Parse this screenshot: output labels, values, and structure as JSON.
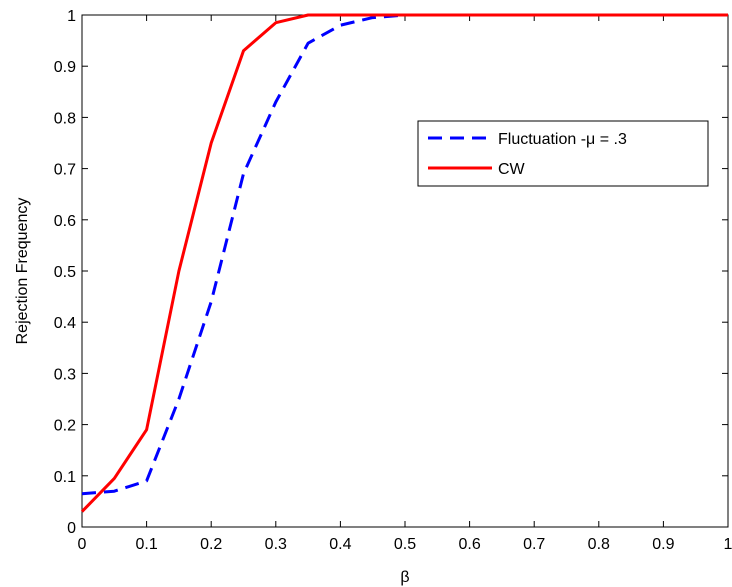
{
  "chart_data": {
    "type": "line",
    "title": "",
    "xlabel": "β",
    "ylabel": "Rejection Frequency",
    "xlim": [
      0,
      1
    ],
    "ylim": [
      0,
      1
    ],
    "xticks": [
      0,
      0.1,
      0.2,
      0.3,
      0.4,
      0.5,
      0.6,
      0.7,
      0.8,
      0.9,
      1
    ],
    "yticks": [
      0,
      0.1,
      0.2,
      0.3,
      0.4,
      0.5,
      0.6,
      0.7,
      0.8,
      0.9,
      1
    ],
    "xtick_labels": [
      "0",
      "0.1",
      "0.2",
      "0.3",
      "0.4",
      "0.5",
      "0.6",
      "0.7",
      "0.8",
      "0.9",
      "1"
    ],
    "ytick_labels": [
      "0",
      "0.1",
      "0.2",
      "0.3",
      "0.4",
      "0.5",
      "0.6",
      "0.7",
      "0.8",
      "0.9",
      "1"
    ],
    "grid": false,
    "legend_position": "right",
    "series": [
      {
        "name": "Fluctuation -μ = .3",
        "color": "#0000ff",
        "dash": "dashed",
        "x": [
          0,
          0.05,
          0.1,
          0.15,
          0.2,
          0.25,
          0.3,
          0.35,
          0.4,
          0.45,
          0.5,
          0.55,
          0.6,
          0.65,
          0.7,
          0.75,
          0.8,
          0.85,
          0.9,
          0.95,
          1
        ],
        "y": [
          0.065,
          0.07,
          0.09,
          0.25,
          0.44,
          0.69,
          0.83,
          0.945,
          0.98,
          0.995,
          1,
          1,
          1,
          1,
          1,
          1,
          1,
          1,
          1,
          1,
          1
        ]
      },
      {
        "name": "CW",
        "color": "#ff0000",
        "dash": "solid",
        "x": [
          0,
          0.05,
          0.1,
          0.15,
          0.2,
          0.25,
          0.3,
          0.35,
          0.4,
          0.45,
          0.5,
          0.55,
          0.6,
          0.65,
          0.7,
          0.75,
          0.8,
          0.85,
          0.9,
          0.95,
          1
        ],
        "y": [
          0.03,
          0.095,
          0.19,
          0.5,
          0.75,
          0.93,
          0.985,
          1,
          1,
          1,
          1,
          1,
          1,
          1,
          1,
          1,
          1,
          1,
          1,
          1,
          1
        ]
      }
    ]
  }
}
